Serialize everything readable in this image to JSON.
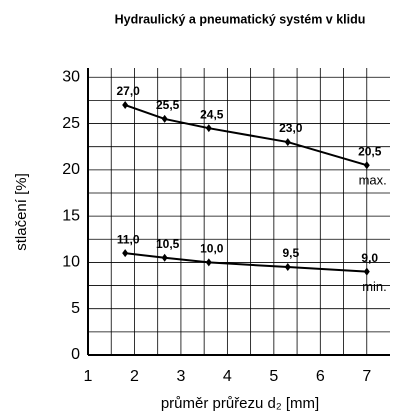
{
  "chart_data": {
    "type": "line",
    "title": "Hydraulický a pneumatický systém v klidu",
    "xlabel": "průměr průřezu d₂ [mm]",
    "ylabel": "stlačení [%]",
    "x": [
      1.8,
      2.65,
      3.6,
      5.3,
      7.0
    ],
    "series": [
      {
        "name": "max.",
        "color": "#000000",
        "values": [
          27.0,
          25.5,
          24.5,
          23.0,
          20.5
        ],
        "value_labels": [
          "27,0",
          "25,5",
          "24,5",
          "23,0",
          "20,5"
        ]
      },
      {
        "name": "min.",
        "color": "#000000",
        "values": [
          11.0,
          10.5,
          10.0,
          9.5,
          9.0
        ],
        "value_labels": [
          "11,0",
          "10,5",
          "10,0",
          "9,5",
          "9,0"
        ]
      }
    ],
    "xlim": [
      1,
      7.5
    ],
    "xticks": [
      1,
      2,
      3,
      4,
      5,
      6,
      7
    ],
    "ylim": [
      0,
      31
    ],
    "yticks": [
      0,
      5,
      10,
      15,
      20,
      25,
      30
    ],
    "grid": true,
    "minor_grid": true
  }
}
